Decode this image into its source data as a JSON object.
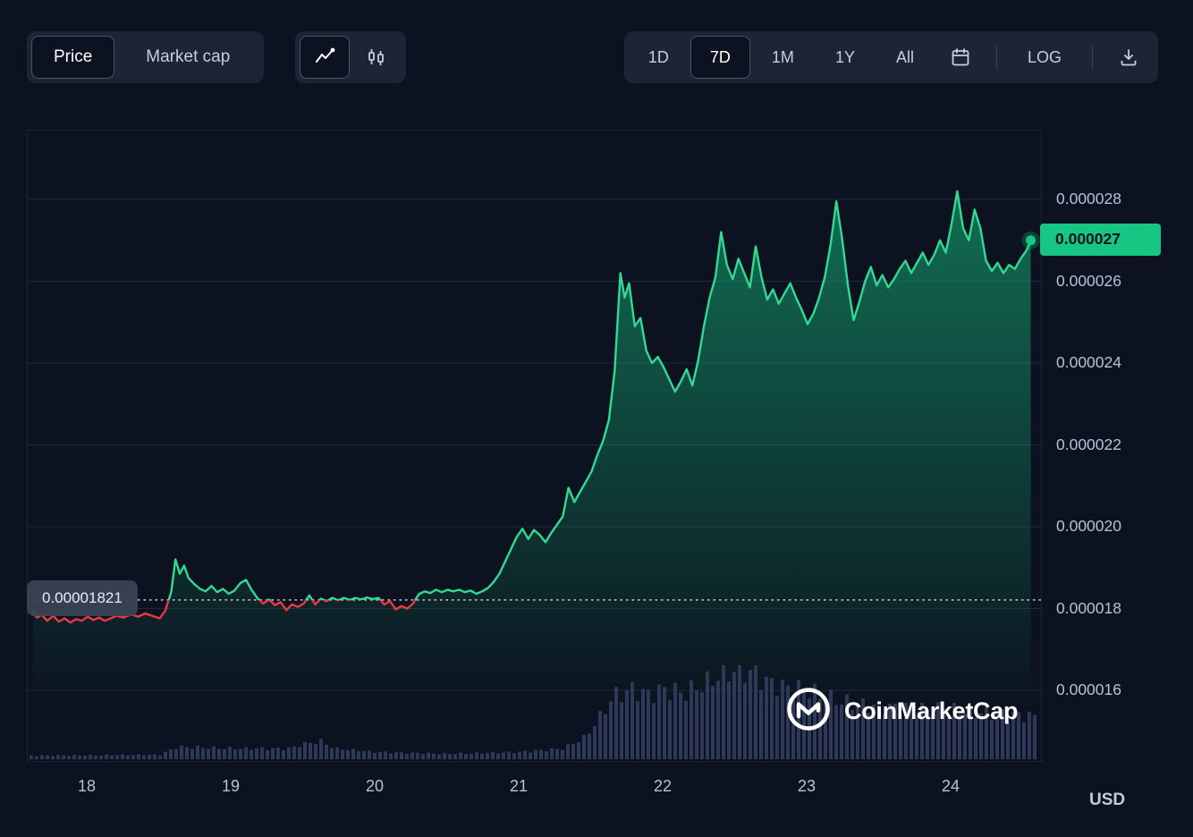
{
  "header": {
    "metric_toggle": {
      "price": "Price",
      "market_cap": "Market cap"
    },
    "chart_type": {
      "selected": "line"
    },
    "ranges": {
      "d1": "1D",
      "d7": "7D",
      "m1": "1M",
      "y1": "1Y",
      "all": "All",
      "log": "LOG"
    },
    "selected_range": "7D",
    "selected_metric": "Price"
  },
  "watermark": {
    "text": "CoinMarketCap"
  },
  "footer": {
    "currency": "USD"
  },
  "chart_data": {
    "type": "line",
    "subtype": "price-with-volume",
    "unit": "USD",
    "note": "prices stored in units of 1e-6 USD (micro-USD); volume_profile heights are relative 0-100",
    "legend": "none",
    "grid": "horizontal",
    "x_axis": {
      "labels": [
        "18",
        "19",
        "20",
        "21",
        "22",
        "23",
        "24"
      ]
    },
    "y_axis": {
      "labels": [
        "0.000028",
        "0.000026",
        "0.000024",
        "0.000022",
        "0.000020",
        "0.000018",
        "0.000016"
      ],
      "values_1e6": [
        28,
        26,
        24,
        22,
        20,
        18,
        16
      ],
      "range_1e6": [
        15.2,
        29.7
      ]
    },
    "previous_close": {
      "label": "0.00001821",
      "value_1e6": 18.21
    },
    "current_price": {
      "label": "0.000027",
      "value_1e6": 27.0
    },
    "colors": {
      "up": "#16c784",
      "line_up": "#32d993",
      "down": "#ea3943",
      "volume": "#2e3858",
      "badge_bg": "#16c784",
      "grid": "#1e2838",
      "dotted": "#d9dfeb",
      "axis_text": "#b9c1d3"
    },
    "series": [
      [
        17.62,
        17.9
      ],
      [
        17.65,
        17.78
      ],
      [
        17.68,
        17.85
      ],
      [
        17.72,
        17.7
      ],
      [
        17.76,
        17.82
      ],
      [
        17.8,
        17.68
      ],
      [
        17.84,
        17.76
      ],
      [
        17.88,
        17.66
      ],
      [
        17.92,
        17.74
      ],
      [
        17.96,
        17.7
      ],
      [
        18.0,
        17.8
      ],
      [
        18.04,
        17.72
      ],
      [
        18.08,
        17.78
      ],
      [
        18.12,
        17.7
      ],
      [
        18.16,
        17.76
      ],
      [
        18.2,
        17.82
      ],
      [
        18.25,
        17.78
      ],
      [
        18.3,
        17.86
      ],
      [
        18.35,
        17.8
      ],
      [
        18.4,
        17.88
      ],
      [
        18.45,
        17.82
      ],
      [
        18.5,
        17.76
      ],
      [
        18.54,
        17.95
      ],
      [
        18.58,
        18.4
      ],
      [
        18.61,
        19.2
      ],
      [
        18.64,
        18.85
      ],
      [
        18.67,
        19.05
      ],
      [
        18.7,
        18.75
      ],
      [
        18.74,
        18.6
      ],
      [
        18.78,
        18.48
      ],
      [
        18.82,
        18.42
      ],
      [
        18.86,
        18.55
      ],
      [
        18.9,
        18.4
      ],
      [
        18.94,
        18.48
      ],
      [
        18.98,
        18.36
      ],
      [
        19.02,
        18.44
      ],
      [
        19.06,
        18.62
      ],
      [
        19.1,
        18.7
      ],
      [
        19.14,
        18.45
      ],
      [
        19.18,
        18.25
      ],
      [
        19.22,
        18.12
      ],
      [
        19.26,
        18.22
      ],
      [
        19.3,
        18.08
      ],
      [
        19.34,
        18.16
      ],
      [
        19.38,
        17.96
      ],
      [
        19.42,
        18.1
      ],
      [
        19.46,
        18.04
      ],
      [
        19.5,
        18.12
      ],
      [
        19.54,
        18.32
      ],
      [
        19.58,
        18.1
      ],
      [
        19.62,
        18.24
      ],
      [
        19.66,
        18.18
      ],
      [
        19.7,
        18.26
      ],
      [
        19.74,
        18.2
      ],
      [
        19.78,
        18.26
      ],
      [
        19.82,
        18.21
      ],
      [
        19.86,
        18.26
      ],
      [
        19.9,
        18.22
      ],
      [
        19.94,
        18.27
      ],
      [
        19.98,
        18.23
      ],
      [
        20.02,
        18.26
      ],
      [
        20.06,
        18.1
      ],
      [
        20.1,
        18.18
      ],
      [
        20.14,
        17.98
      ],
      [
        20.18,
        18.06
      ],
      [
        20.22,
        18.0
      ],
      [
        20.26,
        18.12
      ],
      [
        20.3,
        18.35
      ],
      [
        20.34,
        18.42
      ],
      [
        20.38,
        18.38
      ],
      [
        20.42,
        18.46
      ],
      [
        20.46,
        18.4
      ],
      [
        20.5,
        18.46
      ],
      [
        20.54,
        18.42
      ],
      [
        20.58,
        18.46
      ],
      [
        20.62,
        18.4
      ],
      [
        20.66,
        18.44
      ],
      [
        20.7,
        18.36
      ],
      [
        20.74,
        18.42
      ],
      [
        20.78,
        18.5
      ],
      [
        20.82,
        18.65
      ],
      [
        20.86,
        18.85
      ],
      [
        20.9,
        19.15
      ],
      [
        20.94,
        19.45
      ],
      [
        20.98,
        19.75
      ],
      [
        21.02,
        19.95
      ],
      [
        21.06,
        19.7
      ],
      [
        21.1,
        19.92
      ],
      [
        21.14,
        19.8
      ],
      [
        21.18,
        19.62
      ],
      [
        21.22,
        19.85
      ],
      [
        21.26,
        20.05
      ],
      [
        21.3,
        20.25
      ],
      [
        21.34,
        20.95
      ],
      [
        21.38,
        20.6
      ],
      [
        21.42,
        20.85
      ],
      [
        21.46,
        21.1
      ],
      [
        21.5,
        21.35
      ],
      [
        21.54,
        21.75
      ],
      [
        21.58,
        22.1
      ],
      [
        21.62,
        22.6
      ],
      [
        21.66,
        23.8
      ],
      [
        21.7,
        26.2
      ],
      [
        21.73,
        25.6
      ],
      [
        21.76,
        25.95
      ],
      [
        21.8,
        24.9
      ],
      [
        21.84,
        25.1
      ],
      [
        21.88,
        24.3
      ],
      [
        21.92,
        24.0
      ],
      [
        21.96,
        24.15
      ],
      [
        22.0,
        23.9
      ],
      [
        22.04,
        23.6
      ],
      [
        22.08,
        23.3
      ],
      [
        22.12,
        23.55
      ],
      [
        22.16,
        23.85
      ],
      [
        22.2,
        23.45
      ],
      [
        22.24,
        24.05
      ],
      [
        22.28,
        24.9
      ],
      [
        22.32,
        25.6
      ],
      [
        22.36,
        26.1
      ],
      [
        22.4,
        27.2
      ],
      [
        22.44,
        26.4
      ],
      [
        22.48,
        26.05
      ],
      [
        22.52,
        26.55
      ],
      [
        22.56,
        26.2
      ],
      [
        22.6,
        25.85
      ],
      [
        22.64,
        26.85
      ],
      [
        22.68,
        26.1
      ],
      [
        22.72,
        25.55
      ],
      [
        22.76,
        25.8
      ],
      [
        22.8,
        25.45
      ],
      [
        22.84,
        25.7
      ],
      [
        22.88,
        25.95
      ],
      [
        22.92,
        25.6
      ],
      [
        22.96,
        25.3
      ],
      [
        23.0,
        24.95
      ],
      [
        23.04,
        25.2
      ],
      [
        23.08,
        25.6
      ],
      [
        23.12,
        26.1
      ],
      [
        23.16,
        26.9
      ],
      [
        23.2,
        27.95
      ],
      [
        23.24,
        27.05
      ],
      [
        23.28,
        25.9
      ],
      [
        23.32,
        25.05
      ],
      [
        23.36,
        25.5
      ],
      [
        23.4,
        26.0
      ],
      [
        23.44,
        26.35
      ],
      [
        23.48,
        25.9
      ],
      [
        23.52,
        26.15
      ],
      [
        23.56,
        25.85
      ],
      [
        23.6,
        26.05
      ],
      [
        23.64,
        26.3
      ],
      [
        23.68,
        26.5
      ],
      [
        23.72,
        26.2
      ],
      [
        23.76,
        26.45
      ],
      [
        23.8,
        26.7
      ],
      [
        23.84,
        26.4
      ],
      [
        23.88,
        26.65
      ],
      [
        23.92,
        27.0
      ],
      [
        23.96,
        26.7
      ],
      [
        24.0,
        27.4
      ],
      [
        24.04,
        28.2
      ],
      [
        24.08,
        27.3
      ],
      [
        24.12,
        27.0
      ],
      [
        24.16,
        27.75
      ],
      [
        24.2,
        27.3
      ],
      [
        24.24,
        26.5
      ],
      [
        24.28,
        26.25
      ],
      [
        24.32,
        26.45
      ],
      [
        24.36,
        26.2
      ],
      [
        24.4,
        26.4
      ],
      [
        24.44,
        26.3
      ],
      [
        24.48,
        26.55
      ],
      [
        24.52,
        26.75
      ],
      [
        24.55,
        27.0
      ]
    ],
    "volume_profile": [
      [
        17.62,
        4
      ],
      [
        18.5,
        5
      ],
      [
        18.56,
        9
      ],
      [
        18.62,
        14
      ],
      [
        19.0,
        12
      ],
      [
        19.4,
        12
      ],
      [
        19.5,
        17
      ],
      [
        19.62,
        20
      ],
      [
        19.72,
        12
      ],
      [
        20.0,
        8
      ],
      [
        20.5,
        6
      ],
      [
        21.0,
        8
      ],
      [
        21.3,
        12
      ],
      [
        21.45,
        24
      ],
      [
        21.55,
        45
      ],
      [
        21.65,
        70
      ],
      [
        21.78,
        78
      ],
      [
        21.9,
        72
      ],
      [
        22.0,
        78
      ],
      [
        22.15,
        74
      ],
      [
        22.3,
        85
      ],
      [
        22.42,
        97
      ],
      [
        22.52,
        100
      ],
      [
        22.62,
        97
      ],
      [
        22.72,
        86
      ],
      [
        22.85,
        80
      ],
      [
        23.0,
        78
      ],
      [
        23.1,
        70
      ],
      [
        23.25,
        64
      ],
      [
        23.4,
        60
      ],
      [
        23.6,
        58
      ],
      [
        23.8,
        56
      ],
      [
        24.0,
        55
      ],
      [
        24.2,
        52
      ],
      [
        24.4,
        50
      ],
      [
        24.56,
        48
      ]
    ]
  }
}
